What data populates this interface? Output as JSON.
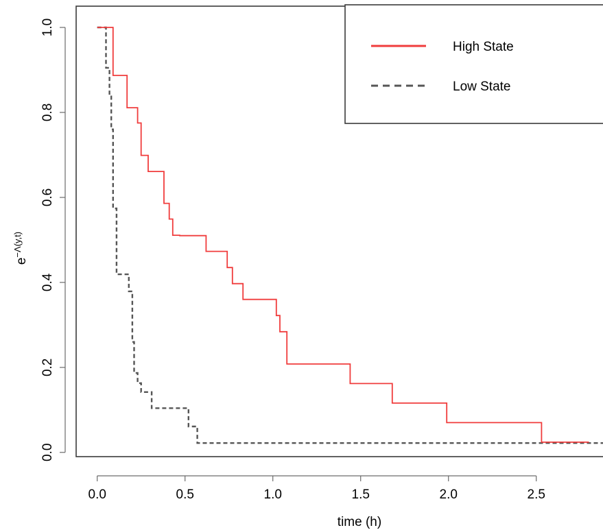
{
  "chart_data": {
    "type": "line",
    "xlabel": "time (h)",
    "ylabel": "e^{−Λ(y,t)}",
    "ylabel_base": "e",
    "ylabel_exponent": "−Λ(y,t)",
    "xlim": [
      -0.12,
      2.88
    ],
    "ylim": [
      -0.01,
      1.05
    ],
    "x_ticks": [
      0.0,
      0.5,
      1.0,
      1.5,
      2.0,
      2.5
    ],
    "x_tick_labels": [
      "0.0",
      "0.5",
      "1.0",
      "1.5",
      "2.0",
      "2.5"
    ],
    "y_ticks": [
      0.0,
      0.2,
      0.4,
      0.6,
      0.8,
      1.0
    ],
    "y_tick_labels": [
      "0.0",
      "0.2",
      "0.4",
      "0.6",
      "0.8",
      "1.0"
    ],
    "grid": false,
    "legend_position": "top-right",
    "series": [
      {
        "name": "High State",
        "style": "step-solid",
        "color": "#f03c3c",
        "x": [
          0.0,
          0.09,
          0.17,
          0.23,
          0.25,
          0.29,
          0.38,
          0.41,
          0.43,
          0.47,
          0.62,
          0.74,
          0.77,
          0.78,
          0.83,
          1.02,
          1.04,
          1.06,
          1.08,
          1.44,
          1.68,
          1.99,
          2.53,
          2.8
        ],
        "y": [
          1.0,
          0.887,
          0.811,
          0.775,
          0.699,
          0.661,
          0.586,
          0.549,
          0.511,
          0.51,
          0.473,
          0.435,
          0.397,
          0.397,
          0.36,
          0.322,
          0.284,
          0.284,
          0.208,
          0.162,
          0.116,
          0.07,
          0.024,
          0.024
        ]
      },
      {
        "name": "Low State",
        "style": "step-dashed",
        "color": "#555555",
        "x": [
          0.0,
          0.05,
          0.07,
          0.08,
          0.09,
          0.11,
          0.18,
          0.2,
          0.21,
          0.23,
          0.25,
          0.31,
          0.52,
          0.57,
          2.88
        ],
        "y": [
          1.0,
          0.905,
          0.84,
          0.76,
          0.574,
          0.419,
          0.379,
          0.26,
          0.187,
          0.163,
          0.142,
          0.104,
          0.061,
          0.022,
          0.022
        ]
      }
    ]
  }
}
